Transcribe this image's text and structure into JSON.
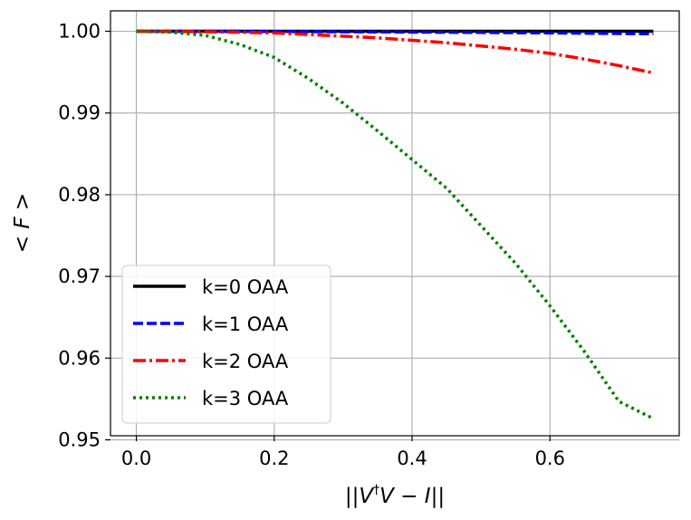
{
  "chart_data": {
    "type": "line",
    "title": "",
    "xlabel_parts": [
      "||",
      "V",
      "†",
      "V",
      " − ",
      "I",
      "||"
    ],
    "ylabel_parts": [
      "< ",
      "F",
      " >"
    ],
    "xlim": [
      -0.0375,
      0.7875
    ],
    "ylim": [
      0.9505,
      1.0025
    ],
    "xticks": [
      0.0,
      0.2,
      0.4,
      0.6
    ],
    "xtick_labels": [
      "0.0",
      "0.2",
      "0.4",
      "0.6"
    ],
    "yticks": [
      0.95,
      0.96,
      0.97,
      0.98,
      0.99,
      1.0
    ],
    "ytick_labels": [
      "0.95",
      "0.96",
      "0.97",
      "0.98",
      "0.99",
      "1.00"
    ],
    "grid": true,
    "legend_position": "lower-left",
    "x": [
      0.0,
      0.05,
      0.1,
      0.15,
      0.2,
      0.25,
      0.3,
      0.35,
      0.4,
      0.45,
      0.5,
      0.55,
      0.6,
      0.65,
      0.7,
      0.75
    ],
    "series": [
      {
        "name": "k=0 OAA",
        "color": "#000000",
        "dash": "solid",
        "values": [
          1.0,
          1.0,
          1.0,
          1.0,
          1.0,
          1.0,
          1.0,
          1.0,
          1.0,
          1.0,
          1.0,
          1.0,
          1.0,
          1.0,
          1.0,
          1.0
        ]
      },
      {
        "name": "k=1 OAA",
        "color": "#0000ee",
        "dash": "dashed",
        "values": [
          1.0,
          1.0,
          1.0,
          1.0,
          0.99998,
          0.99996,
          0.99994,
          0.99992,
          0.9999,
          0.99988,
          0.99986,
          0.99983,
          0.9998,
          0.99977,
          0.99973,
          0.9997
        ]
      },
      {
        "name": "k=2 OAA",
        "color": "#ff0000",
        "dash": "dashdot",
        "values": [
          1.0,
          0.99998,
          0.99995,
          0.99988,
          0.9998,
          0.9996,
          0.9994,
          0.9992,
          0.9989,
          0.9986,
          0.9982,
          0.9978,
          0.9973,
          0.9966,
          0.9958,
          0.9949
        ]
      },
      {
        "name": "k=3 OAA",
        "color": "#008000",
        "dash": "dotted",
        "values": [
          1.0,
          0.9999,
          0.9995,
          0.9984,
          0.9968,
          0.9942,
          0.9912,
          0.9878,
          0.9843,
          0.9808,
          0.9762,
          0.9716,
          0.9664,
          0.9608,
          0.9547,
          0.9526
        ]
      }
    ]
  }
}
